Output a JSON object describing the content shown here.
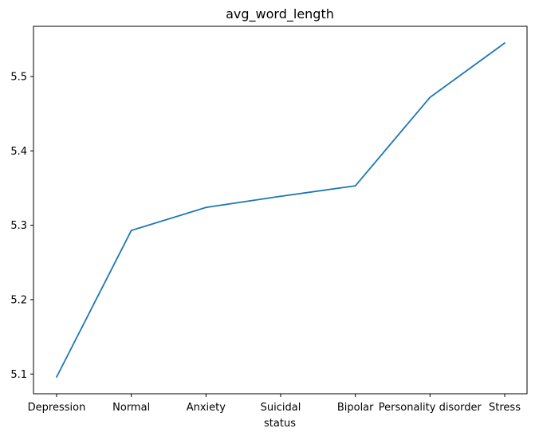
{
  "chart_data": {
    "type": "line",
    "title": "avg_word_length",
    "xlabel": "status",
    "ylabel": "",
    "categories": [
      "Depression",
      "Normal",
      "Anxiety",
      "Suicidal",
      "Bipolar",
      "Personality disorder",
      "Stress"
    ],
    "series": [
      {
        "values": [
          5.096,
          5.293,
          5.324,
          5.339,
          5.353,
          5.472,
          5.545
        ],
        "color": "#1f77b4"
      }
    ],
    "ylim": [
      5.0735,
      5.5675
    ],
    "yticks": [
      5.1,
      5.2,
      5.3,
      5.4,
      5.5
    ],
    "ytick_labels": [
      "5.1",
      "5.2",
      "5.3",
      "5.4",
      "5.5"
    ],
    "grid": false,
    "legend": "none"
  }
}
